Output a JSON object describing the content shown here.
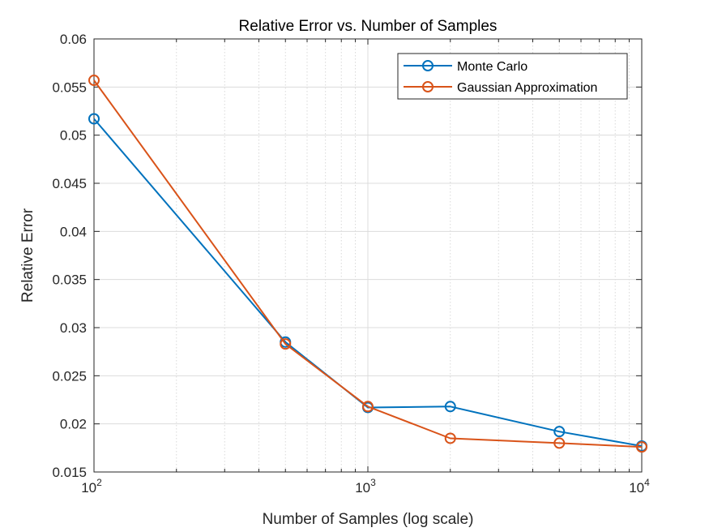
{
  "chart_data": {
    "type": "line",
    "title": "Relative Error vs. Number of Samples",
    "xlabel": "Number of Samples (log scale)",
    "ylabel": "Relative Error",
    "xscale": "log",
    "xlim": [
      100,
      10000
    ],
    "ylim": [
      0.015,
      0.06
    ],
    "grid": true,
    "minor_grid_x": true,
    "legend_position": "top-right",
    "x_ticks": [
      {
        "value": 100,
        "base": "10",
        "exp": "2"
      },
      {
        "value": 1000,
        "base": "10",
        "exp": "3"
      },
      {
        "value": 10000,
        "base": "10",
        "exp": "4"
      }
    ],
    "y_ticks": [
      {
        "value": 0.015,
        "label": "0.015"
      },
      {
        "value": 0.02,
        "label": "0.02"
      },
      {
        "value": 0.025,
        "label": "0.025"
      },
      {
        "value": 0.03,
        "label": "0.03"
      },
      {
        "value": 0.035,
        "label": "0.035"
      },
      {
        "value": 0.04,
        "label": "0.04"
      },
      {
        "value": 0.045,
        "label": "0.045"
      },
      {
        "value": 0.05,
        "label": "0.05"
      },
      {
        "value": 0.055,
        "label": "0.055"
      },
      {
        "value": 0.06,
        "label": "0.06"
      }
    ],
    "x": [
      100,
      500,
      1000,
      2000,
      5000,
      10000
    ],
    "series": [
      {
        "name": "Monte Carlo",
        "color": "#0072BD",
        "marker": "circle",
        "values": [
          0.0517,
          0.0285,
          0.0217,
          0.0218,
          0.0192,
          0.0177
        ]
      },
      {
        "name": "Gaussian Approximation",
        "color": "#D95319",
        "marker": "circle",
        "values": [
          0.0557,
          0.0283,
          0.0218,
          0.0185,
          0.018,
          0.0176
        ]
      }
    ]
  }
}
